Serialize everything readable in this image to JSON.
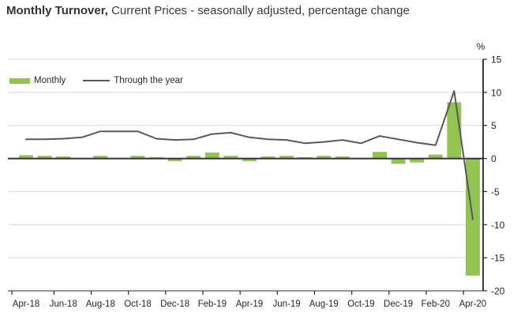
{
  "title": {
    "bold": "Monthly Turnover,",
    "rest": " Current Prices - seasonally adjusted, percentage change"
  },
  "legend": {
    "items": [
      {
        "label": "Monthly",
        "type": "bar",
        "color": "#92c353"
      },
      {
        "label": "Through the year",
        "type": "line",
        "color": "#595959"
      }
    ]
  },
  "colors": {
    "bar": "#92c353",
    "line": "#595959",
    "grid": "#d9d9d9",
    "axis": "#262626",
    "zero_line": "#333333",
    "bottom_axis": "#595959",
    "tick_text": "#262626"
  },
  "chart_data": {
    "type": "bar",
    "title": "Monthly Turnover, Current Prices - seasonally adjusted, percentage change",
    "categories": [
      "Apr-18",
      "May-18",
      "Jun-18",
      "Jul-18",
      "Aug-18",
      "Sep-18",
      "Oct-18",
      "Nov-18",
      "Dec-18",
      "Jan-19",
      "Feb-19",
      "Mar-19",
      "Apr-19",
      "May-19",
      "Jun-19",
      "Jul-19",
      "Aug-19",
      "Sep-19",
      "Oct-19",
      "Nov-19",
      "Dec-19",
      "Jan-20",
      "Feb-20",
      "Mar-20",
      "Apr-20"
    ],
    "series": [
      {
        "name": "Monthly",
        "type": "bar",
        "values": [
          0.5,
          0.4,
          0.3,
          0.0,
          0.4,
          0.1,
          0.4,
          0.2,
          -0.4,
          0.4,
          0.9,
          0.4,
          -0.4,
          0.3,
          0.4,
          0.2,
          0.4,
          0.3,
          0.0,
          1.0,
          -0.8,
          -0.6,
          0.6,
          8.5,
          -17.7
        ]
      },
      {
        "name": "Through the year",
        "type": "line",
        "values": [
          2.9,
          2.9,
          3.0,
          3.2,
          4.1,
          4.1,
          4.1,
          3.0,
          2.8,
          2.9,
          3.7,
          3.9,
          3.2,
          2.9,
          2.8,
          2.3,
          2.5,
          2.8,
          2.3,
          3.4,
          2.9,
          2.4,
          2.0,
          10.2,
          -9.2
        ]
      }
    ],
    "x_tick_labels": [
      "Apr-18",
      "Jun-18",
      "Aug-18",
      "Oct-18",
      "Dec-18",
      "Feb-19",
      "Apr-19",
      "Jun-19",
      "Aug-19",
      "Oct-19",
      "Dec-19",
      "Feb-20",
      "Apr-20"
    ],
    "y_ticks": [
      15,
      10,
      5,
      0,
      -5,
      -10,
      -15,
      -20
    ],
    "ylim": [
      -20,
      15
    ],
    "ylabel": "%",
    "xlabel": "",
    "grid": true,
    "legend_position": "top-left",
    "y_axis_side": "right"
  }
}
